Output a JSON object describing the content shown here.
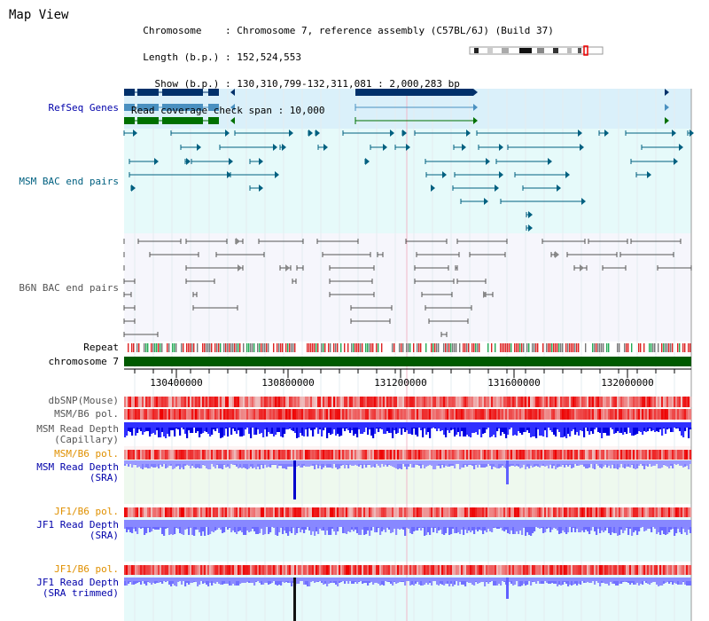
{
  "header": {
    "title": "Map View",
    "info_lines": [
      "  Chromosome    : Chromosome 7, reference assembly (C57BL/6J) (Build 37)",
      "  Length (b.p.) : 152,524,553",
      "    Show (b.p.) : 130,310,799-132,311,081 : 2,000,283 bp",
      "Read coverage check span : 10,000"
    ]
  },
  "colors": {
    "label_blue": "#0000aa",
    "label_teal": "#006080",
    "label_gray": "#555555",
    "label_orange": "#e09000",
    "refseq": "#00306a",
    "refseq_mid": "#4a90c0",
    "refseq_green": "#007000",
    "msm_bac": "#006080",
    "b6n_bac": "#555555",
    "chromosome": "#005a00",
    "depth_dark": "#0000e0",
    "depth_light": "#7070ff",
    "pol_red": "#ee2222"
  },
  "tracks": {
    "refseq_genes": "RefSeq Genes",
    "msm_bac": "MSM BAC end pairs",
    "b6n_bac": "B6N BAC end pairs",
    "repeat": "Repeat",
    "chromosome": "chromosome 7",
    "dbsnp": "dbSNP(Mouse)",
    "msm_b6_pol_1": "MSM/B6 pol.",
    "msm_depth_cap_1": "MSM Read Depth",
    "msm_depth_cap_2": "(Capillary)",
    "msm_b6_pol_2": "MSM/B6 pol.",
    "msm_depth_sra_1": "MSM Read Depth",
    "msm_depth_sra_2": "(SRA)",
    "jf1_pol_1": "JF1/B6 pol.",
    "jf1_depth_1": "JF1 Read Depth",
    "jf1_depth_2": "(SRA)",
    "jf1_pol_2": "JF1/B6 pol.",
    "jf1_trim_1": "JF1 Read Depth",
    "jf1_trim_2": "(SRA trimmed)"
  },
  "axis": {
    "ticks": [
      "130400000",
      "130800000",
      "131200000",
      "131600000",
      "132000000"
    ]
  }
}
